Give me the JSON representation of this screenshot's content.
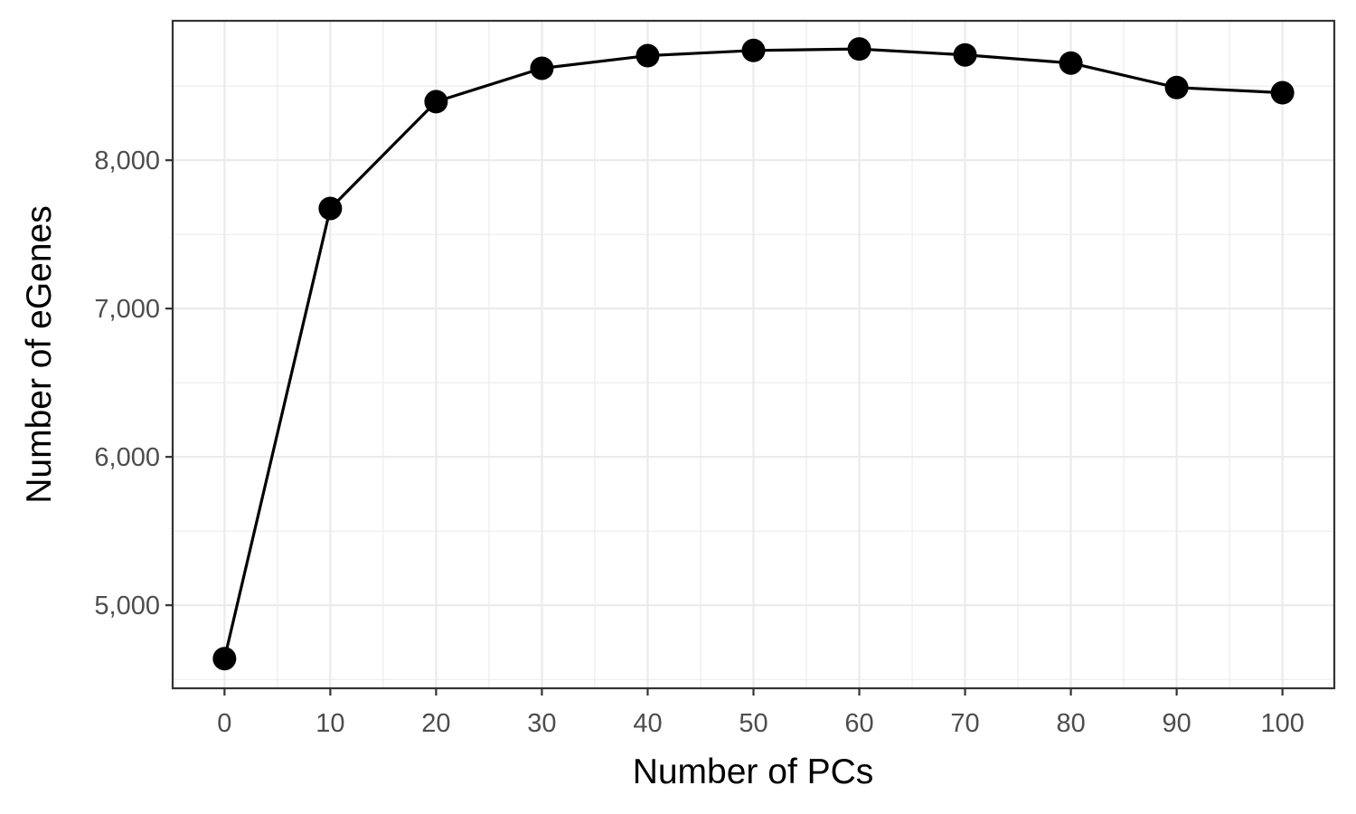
{
  "chart_data": {
    "type": "line",
    "xlabel": "Number of PCs",
    "ylabel": "Number of eGenes",
    "x": [
      0,
      10,
      20,
      30,
      40,
      50,
      60,
      70,
      80,
      90,
      100
    ],
    "series": [
      {
        "values": [
          4640,
          7675,
          8395,
          8620,
          8705,
          8740,
          8750,
          8710,
          8655,
          8490,
          8455
        ]
      }
    ],
    "xlim": [
      -4.9,
      104.9
    ],
    "ylim": [
      4440,
      8940
    ],
    "xticks": [
      0,
      10,
      20,
      30,
      40,
      50,
      60,
      70,
      80,
      90,
      100
    ],
    "xtick_labels": [
      "0",
      "10",
      "20",
      "30",
      "40",
      "50",
      "60",
      "70",
      "80",
      "90",
      "100"
    ],
    "yticks": [
      5000,
      6000,
      7000,
      8000
    ],
    "ytick_labels": [
      "5,000",
      "6,000",
      "7,000",
      "8,000"
    ],
    "grid": true,
    "colors": {
      "line": "#000000",
      "points": "#000000",
      "grid": "#ebebeb",
      "panel_border": "#333333",
      "tick_text": "#4d4d4d"
    }
  }
}
